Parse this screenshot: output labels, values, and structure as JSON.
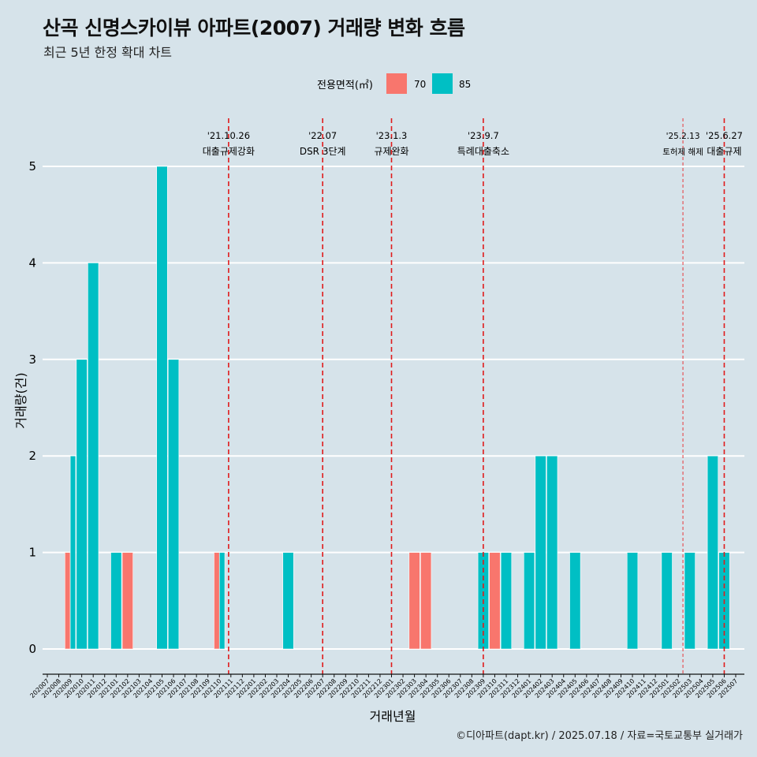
{
  "title": "산곡 신명스카이뷰 아파트(2007) 거래량 변화 흐름",
  "subtitle": "최근 5년 한정 확대 차트",
  "caption": "©디아파트(dapt.kr) / 2025.07.18 / 자료=국토교통부 실거래가",
  "legend": {
    "title": "전용면적(㎡)",
    "items": [
      {
        "label": "70",
        "color": "#f8766d"
      },
      {
        "label": "85",
        "color": "#00bfc4"
      }
    ]
  },
  "chart_data": {
    "type": "bar",
    "xlabel": "거래년월",
    "ylabel": "거래량(건)",
    "ylim": [
      0,
      5
    ],
    "yticks": [
      0,
      1,
      2,
      3,
      4,
      5
    ],
    "categories": [
      "202007",
      "202008",
      "202009",
      "202010",
      "202011",
      "202012",
      "202101",
      "202102",
      "202103",
      "202104",
      "202105",
      "202106",
      "202107",
      "202108",
      "202109",
      "202110",
      "202111",
      "202112",
      "202201",
      "202202",
      "202203",
      "202204",
      "202205",
      "202206",
      "202207",
      "202208",
      "202209",
      "202210",
      "202211",
      "202212",
      "202301",
      "202302",
      "202303",
      "202304",
      "202305",
      "202306",
      "202307",
      "202308",
      "202309",
      "202310",
      "202311",
      "202312",
      "202401",
      "202402",
      "202403",
      "202404",
      "202405",
      "202406",
      "202407",
      "202408",
      "202409",
      "202410",
      "202411",
      "202412",
      "202501",
      "202502",
      "202503",
      "202504",
      "202505",
      "202506",
      "202507"
    ],
    "series": [
      {
        "name": "70",
        "color": "#f8766d",
        "values": [
          0,
          0,
          1,
          0,
          0,
          0,
          0,
          1,
          0,
          0,
          0,
          0,
          0,
          0,
          0,
          1,
          0,
          0,
          0,
          0,
          0,
          0,
          0,
          0,
          0,
          0,
          0,
          0,
          0,
          0,
          0,
          0,
          1,
          1,
          0,
          0,
          0,
          0,
          0,
          1,
          0,
          0,
          0,
          0,
          0,
          0,
          0,
          0,
          0,
          0,
          0,
          0,
          0,
          0,
          0,
          0,
          0,
          0,
          0,
          0,
          0
        ]
      },
      {
        "name": "85",
        "color": "#00bfc4",
        "values": [
          0,
          0,
          2,
          3,
          4,
          0,
          1,
          0,
          0,
          0,
          5,
          3,
          0,
          0,
          0,
          1,
          0,
          0,
          0,
          0,
          0,
          1,
          0,
          0,
          0,
          0,
          0,
          0,
          0,
          0,
          0,
          0,
          0,
          0,
          0,
          0,
          0,
          0,
          1,
          0,
          1,
          0,
          1,
          2,
          2,
          0,
          1,
          0,
          0,
          0,
          0,
          1,
          0,
          0,
          1,
          0,
          1,
          0,
          2,
          1,
          0
        ]
      }
    ],
    "events": [
      {
        "date": "'21.10.26",
        "label": "대출규제강화",
        "at": "202110",
        "offset": 0.8,
        "style": "dashed"
      },
      {
        "date": "'22.07",
        "label": "DSR 3단계",
        "at": "202207",
        "offset": 0.0,
        "style": "dashed"
      },
      {
        "date": "'23.1.3",
        "label": "규제완화",
        "at": "202301",
        "offset": 0.0,
        "style": "dashed"
      },
      {
        "date": "'23.9.7",
        "label": "특례대출축소",
        "at": "202309",
        "offset": 0.0,
        "style": "dashed"
      },
      {
        "date": "'25.2.13",
        "label": "토허제 해제",
        "at": "202502",
        "offset": 0.4,
        "style": "thin",
        "small": true
      },
      {
        "date": "'25.6.27",
        "label": "대출규제",
        "at": "202506",
        "offset": 0.0,
        "style": "dashed"
      }
    ]
  }
}
